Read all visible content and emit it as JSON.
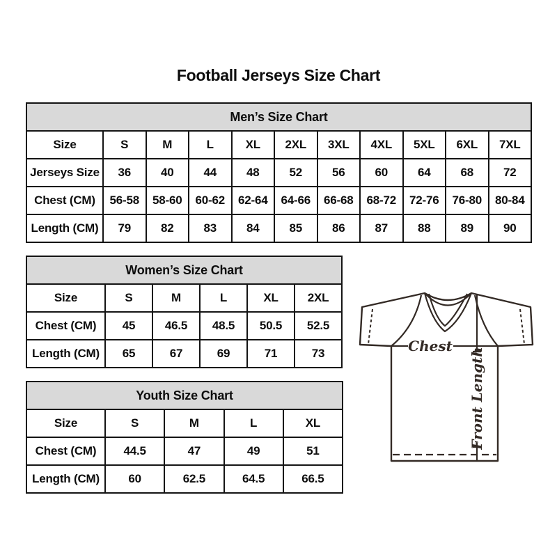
{
  "page": {
    "title": "Football Jerseys Size Chart"
  },
  "colors": {
    "background": "#ffffff",
    "table_header_bg": "#d9d9d9",
    "table_border": "#141414",
    "text": "#0d0d0d",
    "diagram_line": "#332a25"
  },
  "tables": {
    "mens": {
      "title": "Men’s Size Chart",
      "columns": [
        "Size",
        "S",
        "M",
        "L",
        "XL",
        "2XL",
        "3XL",
        "4XL",
        "5XL",
        "6XL",
        "7XL"
      ],
      "rows": [
        {
          "label": "Jerseys Size",
          "values": [
            "36",
            "40",
            "44",
            "48",
            "52",
            "56",
            "60",
            "64",
            "68",
            "72"
          ]
        },
        {
          "label": "Chest (CM)",
          "values": [
            "56-58",
            "58-60",
            "60-62",
            "62-64",
            "64-66",
            "66-68",
            "68-72",
            "72-76",
            "76-80",
            "80-84"
          ]
        },
        {
          "label": "Length (CM)",
          "values": [
            "79",
            "82",
            "83",
            "84",
            "85",
            "86",
            "87",
            "88",
            "89",
            "90"
          ]
        }
      ]
    },
    "womens": {
      "title": "Women’s Size Chart",
      "columns": [
        "Size",
        "S",
        "M",
        "L",
        "XL",
        "2XL"
      ],
      "rows": [
        {
          "label": "Chest (CM)",
          "values": [
            "45",
            "46.5",
            "48.5",
            "50.5",
            "52.5"
          ]
        },
        {
          "label": "Length (CM)",
          "values": [
            "65",
            "67",
            "69",
            "71",
            "73"
          ]
        }
      ]
    },
    "youth": {
      "title": "Youth Size Chart",
      "columns": [
        "Size",
        "S",
        "M",
        "L",
        "XL"
      ],
      "rows": [
        {
          "label": "Chest (CM)",
          "values": [
            "44.5",
            "47",
            "49",
            "51"
          ]
        },
        {
          "label": "Length (CM)",
          "values": [
            "60",
            "62.5",
            "64.5",
            "66.5"
          ]
        }
      ]
    }
  },
  "jersey_diagram": {
    "chest_label": "Chest",
    "front_length_label": "Front Length"
  }
}
